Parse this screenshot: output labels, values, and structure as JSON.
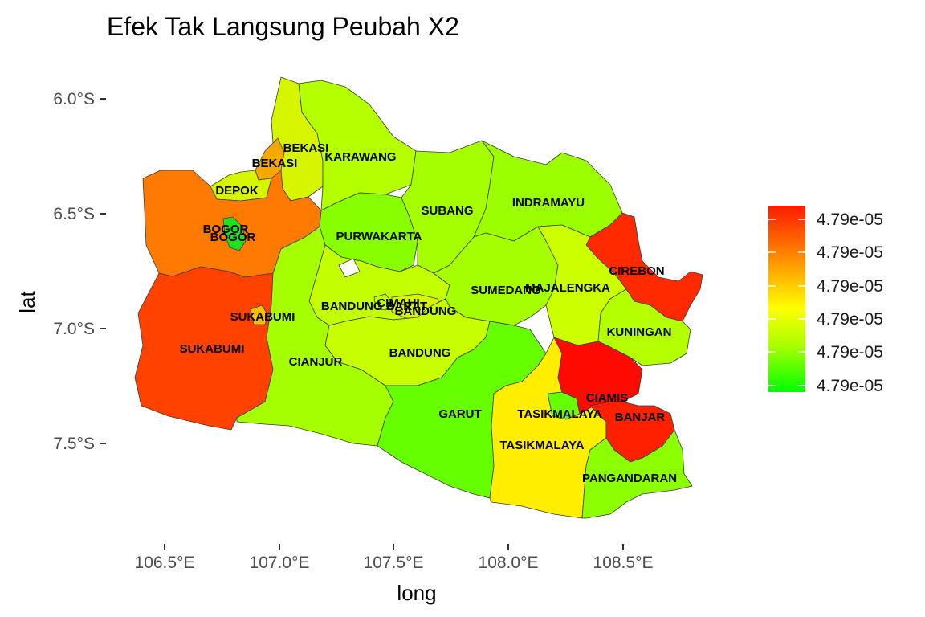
{
  "title": "Efek Tak Langsung Peubah X2",
  "xlabel": "long",
  "ylabel": "lat",
  "x_ticks": [
    "106.5°E",
    "107.0°E",
    "107.5°E",
    "108.0°E",
    "108.5°E"
  ],
  "y_ticks": [
    "6.0°S",
    "6.5°S",
    "7.0°S",
    "7.5°S"
  ],
  "legend": {
    "labels": [
      "4.79e-05",
      "4.79e-05",
      "4.79e-05",
      "4.79e-05",
      "4.79e-05",
      "4.79e-05"
    ],
    "colors": [
      "#ff1a00",
      "#ff6a00",
      "#ffbf00",
      "#ffff00",
      "#aaff00",
      "#00ff00"
    ]
  },
  "regions": [
    {
      "name": "BEKASI",
      "color": "#f5a800"
    },
    {
      "name": "BEKASI",
      "color": "#d8f500"
    },
    {
      "name": "KARAWANG",
      "color": "#b4ff00"
    },
    {
      "name": "DEPOK",
      "color": "#d8f500"
    },
    {
      "name": "BOGOR",
      "color": "#ff7a00"
    },
    {
      "name": "BOGOR",
      "color": "#20e020"
    },
    {
      "name": "PURWAKARTA",
      "color": "#88ff00"
    },
    {
      "name": "SUBANG",
      "color": "#a6ff00"
    },
    {
      "name": "INDRAMAYU",
      "color": "#9cff00"
    },
    {
      "name": "CIREBON",
      "color": "#ff2a00"
    },
    {
      "name": "SUKABUMI",
      "color": "#ff4200"
    },
    {
      "name": "SUKABUMI",
      "color": "#f5c000"
    },
    {
      "name": "BANDUNG BARAT",
      "color": "#c4ff00"
    },
    {
      "name": "CIMAHI",
      "color": "#c4ff00"
    },
    {
      "name": "BANDUNG",
      "color": "#d8f500"
    },
    {
      "name": "SUMEDANG",
      "color": "#a6ff00"
    },
    {
      "name": "MAJALENGKA",
      "color": "#ccff00"
    },
    {
      "name": "KUNINGAN",
      "color": "#b4ff00"
    },
    {
      "name": "CIANJUR",
      "color": "#a6ff00"
    },
    {
      "name": "BANDUNG",
      "color": "#c8ff00"
    },
    {
      "name": "GARUT",
      "color": "#66ff00"
    },
    {
      "name": "TASIKMALAYA",
      "color": "#66ff00"
    },
    {
      "name": "TASIKMALAYA",
      "color": "#ffee00"
    },
    {
      "name": "CIAMIS",
      "color": "#ff0a00"
    },
    {
      "name": "BANJAR",
      "color": "#ff2000"
    },
    {
      "name": "PANGANDARAN",
      "color": "#8cff00"
    }
  ]
}
